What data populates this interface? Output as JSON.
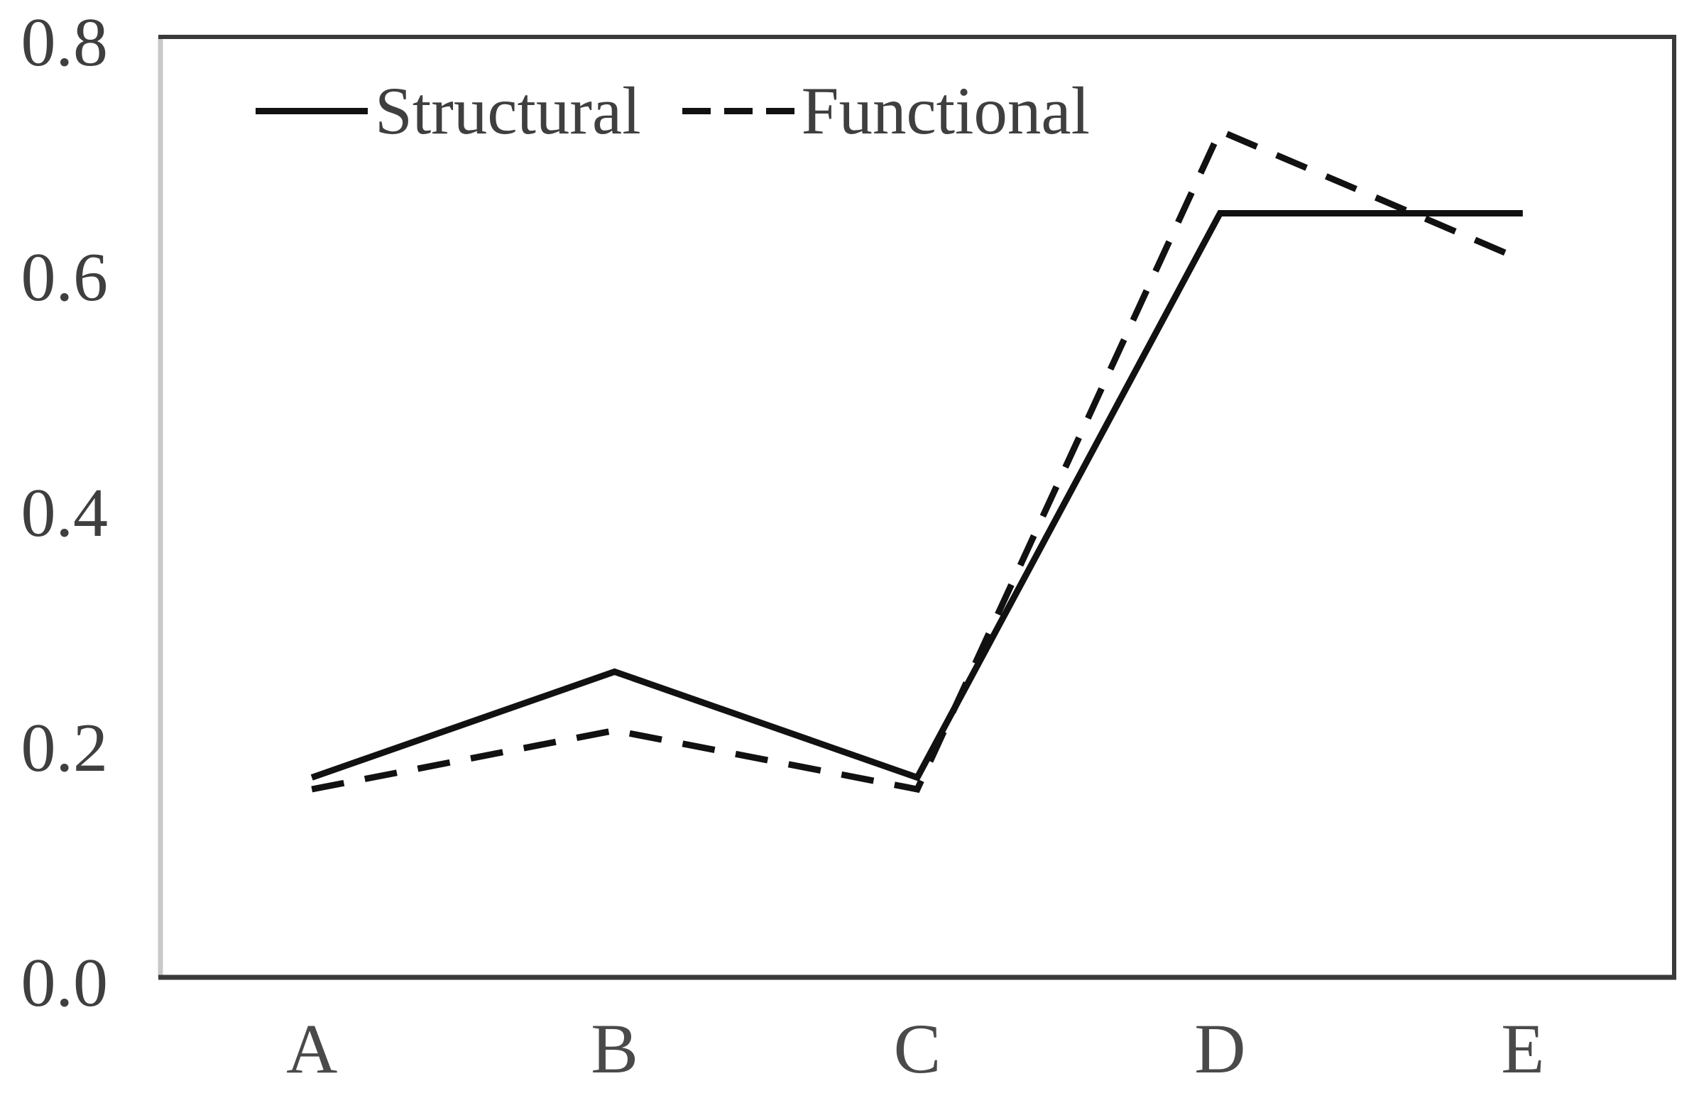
{
  "page": {
    "background": "#ffffff"
  },
  "legend": {
    "position": "top-inside",
    "items": [
      {
        "label": "Structural",
        "style": "solid"
      },
      {
        "label": "Functional",
        "style": "dashed"
      }
    ]
  },
  "chart_data": {
    "type": "line",
    "categories": [
      "A",
      "B",
      "C",
      "D",
      "E"
    ],
    "series": [
      {
        "name": "Structural",
        "style": "solid",
        "values": [
          0.17,
          0.26,
          0.17,
          0.65,
          0.65
        ]
      },
      {
        "name": "Functional",
        "style": "dashed",
        "values": [
          0.16,
          0.21,
          0.16,
          0.72,
          0.61
        ]
      }
    ],
    "title": "",
    "xlabel": "",
    "ylabel": "",
    "ylim": [
      0,
      0.8
    ],
    "yticks": [
      "0.0",
      "0.2",
      "0.4",
      "0.6",
      "0.8"
    ],
    "grid": false,
    "legend_position": "top-left-inside",
    "colors": {
      "line": "#111111",
      "text": "#3f3f3f",
      "border_dark": "#3a3a3a",
      "axis_light": "#c9c9c9",
      "background": "#ffffff"
    }
  }
}
